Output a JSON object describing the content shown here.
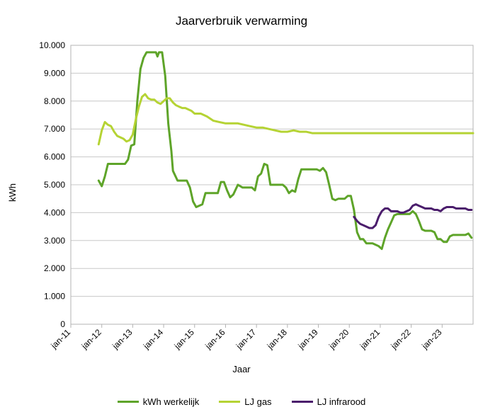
{
  "chart_data": {
    "type": "line",
    "title": "Jaarverbruik verwarming",
    "xlabel": "Jaar",
    "ylabel": "kWh",
    "ylim": [
      0,
      10000
    ],
    "yticks": [
      "0",
      "1.000",
      "2.000",
      "3.000",
      "4.000",
      "5.000",
      "6.000",
      "7.000",
      "8.000",
      "9.000",
      "10.000"
    ],
    "xticks": [
      "jan-11",
      "jan-12",
      "jan-13",
      "jan-14",
      "jan-15",
      "jan-16",
      "jan-17",
      "jan-18",
      "jan-19",
      "jan-20",
      "jan-21",
      "jan-22",
      "jan-23"
    ],
    "grid": "horizontal",
    "legend_position": "bottom",
    "series": [
      {
        "name": "kWh werkelijk",
        "color": "#5ea429",
        "x": [
          11.9,
          12.0,
          12.1,
          12.2,
          12.25,
          12.4,
          12.6,
          12.75,
          12.85,
          12.95,
          13.05,
          13.15,
          13.25,
          13.35,
          13.45,
          13.55,
          13.7,
          13.75,
          13.8,
          13.85,
          13.9,
          13.95,
          14.05,
          14.15,
          14.25,
          14.3,
          14.45,
          14.65,
          14.75,
          14.85,
          14.95,
          15.05,
          15.15,
          15.25,
          15.35,
          15.55,
          15.75,
          15.85,
          15.95,
          16.05,
          16.15,
          16.25,
          16.4,
          16.55,
          16.65,
          16.75,
          16.85,
          16.95,
          17.05,
          17.15,
          17.25,
          17.35,
          17.45,
          17.65,
          17.85,
          17.95,
          18.05,
          18.15,
          18.25,
          18.35,
          18.45,
          18.55,
          18.65,
          18.75,
          18.85,
          18.95,
          19.05,
          19.15,
          19.25,
          19.35,
          19.45,
          19.55,
          19.65,
          19.75,
          19.85,
          19.95,
          20.05,
          20.15,
          20.25,
          20.35,
          20.45,
          20.55,
          20.65,
          20.75,
          20.85,
          20.95,
          21.05,
          21.15,
          21.25,
          21.35,
          21.45,
          21.55,
          21.65,
          21.75,
          21.85,
          21.95,
          22.05,
          22.15,
          22.25,
          22.35,
          22.45,
          22.55,
          22.65,
          22.75,
          22.85,
          22.95,
          23.05,
          23.15,
          23.25,
          23.35,
          23.45,
          23.55,
          23.65,
          23.75,
          23.85,
          23.95
        ],
        "values": [
          5150,
          4950,
          5300,
          5750,
          5750,
          5750,
          5750,
          5750,
          5900,
          6400,
          6450,
          8000,
          9150,
          9550,
          9750,
          9750,
          9750,
          9750,
          9600,
          9750,
          9750,
          9750,
          8900,
          7200,
          6200,
          5500,
          5150,
          5150,
          5150,
          4900,
          4400,
          4200,
          4250,
          4300,
          4700,
          4700,
          4700,
          5100,
          5100,
          4800,
          4550,
          4650,
          5000,
          4900,
          4900,
          4900,
          4900,
          4800,
          5300,
          5400,
          5750,
          5700,
          5000,
          5000,
          5000,
          4900,
          4700,
          4800,
          4750,
          5200,
          5550,
          5550,
          5550,
          5550,
          5550,
          5550,
          5500,
          5600,
          5450,
          5000,
          4500,
          4450,
          4500,
          4500,
          4500,
          4600,
          4600,
          4100,
          3300,
          3050,
          3050,
          2900,
          2900,
          2900,
          2850,
          2800,
          2700,
          3100,
          3400,
          3650,
          3900,
          3950,
          3950,
          3950,
          3950,
          3950,
          4050,
          3950,
          3700,
          3400,
          3350,
          3350,
          3350,
          3300,
          3050,
          3050,
          2950,
          2950,
          3150,
          3200,
          3200,
          3200,
          3200,
          3200,
          3250,
          3100
        ]
      },
      {
        "name": "LJ gas",
        "color": "#b5d334",
        "x": [
          11.9,
          12.0,
          12.1,
          12.2,
          12.3,
          12.4,
          12.5,
          12.6,
          12.7,
          12.8,
          12.9,
          13.0,
          13.1,
          13.2,
          13.3,
          13.4,
          13.5,
          13.6,
          13.7,
          13.8,
          13.9,
          14.0,
          14.1,
          14.2,
          14.3,
          14.4,
          14.5,
          14.6,
          14.7,
          14.8,
          14.9,
          15.0,
          15.2,
          15.4,
          15.6,
          15.8,
          16.0,
          16.2,
          16.4,
          16.6,
          16.8,
          17.0,
          17.2,
          17.4,
          17.6,
          17.8,
          18.0,
          18.2,
          18.4,
          18.6,
          18.8,
          19.0,
          19.2,
          19.5,
          20.0,
          20.5,
          21.0,
          21.5,
          22.0,
          22.5,
          23.0,
          23.5,
          24.0
        ],
        "values": [
          6450,
          6950,
          7250,
          7150,
          7100,
          6900,
          6750,
          6700,
          6650,
          6550,
          6600,
          6800,
          7350,
          7800,
          8150,
          8250,
          8100,
          8050,
          8050,
          7950,
          7900,
          8000,
          8100,
          8100,
          7950,
          7850,
          7800,
          7750,
          7750,
          7700,
          7650,
          7550,
          7550,
          7450,
          7300,
          7250,
          7200,
          7200,
          7200,
          7150,
          7100,
          7050,
          7050,
          7000,
          6950,
          6900,
          6900,
          6950,
          6900,
          6900,
          6850,
          6850,
          6850,
          6850,
          6850,
          6850,
          6850,
          6850,
          6850,
          6850,
          6850,
          6850,
          6850
        ]
      },
      {
        "name": "LJ infrarood",
        "color": "#4b1d6c",
        "x": [
          20.15,
          20.25,
          20.35,
          20.45,
          20.55,
          20.65,
          20.75,
          20.85,
          20.95,
          21.05,
          21.15,
          21.25,
          21.35,
          21.45,
          21.55,
          21.65,
          21.75,
          21.85,
          21.95,
          22.05,
          22.15,
          22.25,
          22.35,
          22.45,
          22.55,
          22.65,
          22.75,
          22.85,
          22.95,
          23.05,
          23.15,
          23.25,
          23.35,
          23.45,
          23.55,
          23.65,
          23.75,
          23.85,
          23.95
        ],
        "values": [
          3850,
          3700,
          3600,
          3550,
          3500,
          3450,
          3450,
          3550,
          3850,
          4050,
          4150,
          4150,
          4050,
          4050,
          4050,
          4000,
          4000,
          4050,
          4100,
          4250,
          4300,
          4250,
          4200,
          4150,
          4150,
          4150,
          4100,
          4100,
          4050,
          4150,
          4200,
          4200,
          4200,
          4150,
          4150,
          4150,
          4150,
          4100,
          4100
        ]
      }
    ]
  }
}
